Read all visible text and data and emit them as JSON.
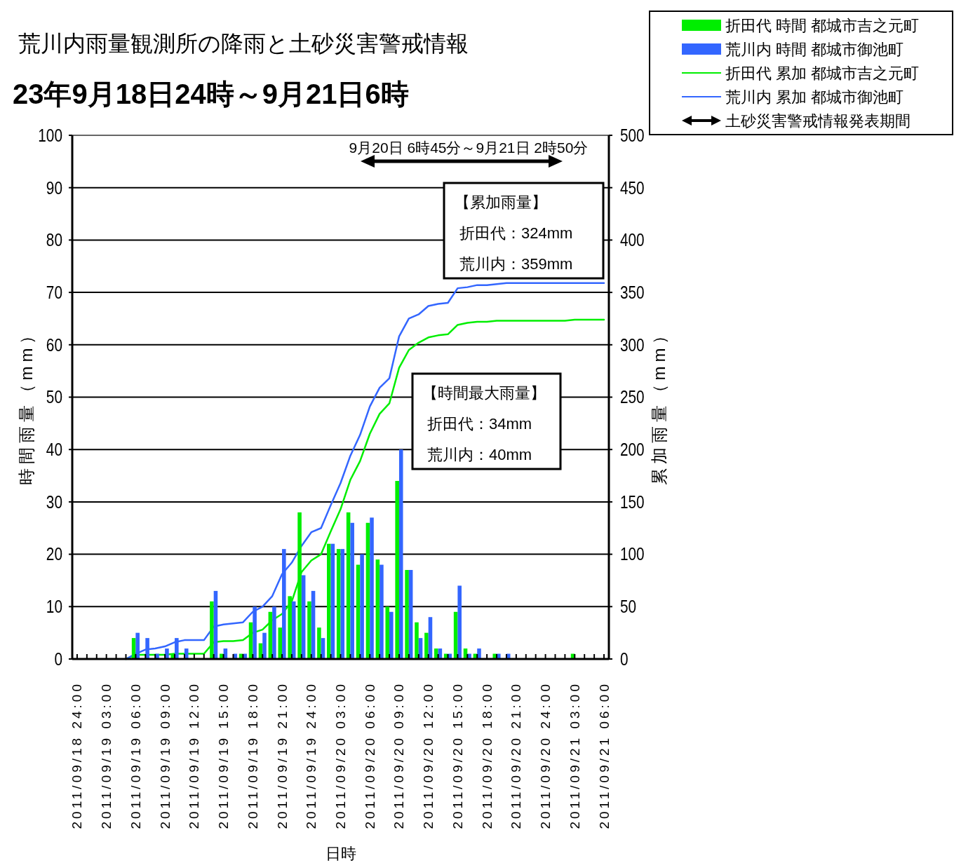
{
  "chart_data": {
    "type": "bar",
    "title": "荒川内雨量観測所の降雨と土砂災害警戒情報",
    "subtitle": "23年9月18日24時～9月21日6時",
    "xlabel": "日時",
    "ylabel": "時間雨量（mm）",
    "y2label": "累加雨量（mm）",
    "categories": [
      "2011/09/18 24:00",
      null,
      null,
      "2011/09/19 03:00",
      null,
      null,
      "2011/09/19 06:00",
      null,
      null,
      "2011/09/19 09:00",
      null,
      null,
      "2011/09/19 12:00",
      null,
      null,
      "2011/09/19 15:00",
      null,
      null,
      "2011/09/19 18:00",
      null,
      null,
      "2011/09/19 21:00",
      null,
      null,
      "2011/09/19 24:00",
      null,
      null,
      "2011/09/20 03:00",
      null,
      null,
      "2011/09/20 06:00",
      null,
      null,
      "2011/09/20 09:00",
      null,
      null,
      "2011/09/20 12:00",
      null,
      null,
      "2011/09/20 15:00",
      null,
      null,
      "2011/09/20 18:00",
      null,
      null,
      "2011/09/20 21:00",
      null,
      null,
      "2011/09/20 24:00",
      null,
      null,
      "2011/09/21 03:00",
      null,
      null,
      "2011/09/21 06:00"
    ],
    "series": [
      {
        "name": "折田代 時間 都城市吉之元町",
        "color": "#00ee00",
        "values": [
          0,
          0,
          0,
          0,
          0,
          0,
          4,
          0,
          0,
          0,
          1,
          0,
          0,
          0,
          11,
          1,
          0,
          1,
          7,
          3,
          9,
          6,
          12,
          28,
          11,
          6,
          22,
          21,
          28,
          18,
          26,
          19,
          10,
          34,
          17,
          7,
          5,
          2,
          1,
          9,
          2,
          1,
          0,
          1,
          0,
          0,
          0,
          0,
          0,
          0,
          0,
          1,
          0,
          0,
          0
        ]
      },
      {
        "name": "荒川内 時間 都城市御池町",
        "color": "#3366ff",
        "values": [
          0,
          0,
          0,
          0,
          0,
          0,
          5,
          4,
          1,
          2,
          4,
          2,
          0,
          0,
          13,
          2,
          1,
          1,
          10,
          5,
          10,
          21,
          11,
          16,
          13,
          4,
          22,
          21,
          26,
          20,
          27,
          18,
          9,
          40,
          17,
          4,
          8,
          2,
          1,
          14,
          1,
          2,
          0,
          1,
          1,
          0,
          0,
          0,
          0,
          0,
          0,
          0,
          0,
          0,
          0
        ]
      },
      {
        "name": "折田代 累加 都城市吉之元町",
        "type": "line",
        "axis": "y2",
        "color": "#00ee00",
        "values": [
          null,
          null,
          null,
          null,
          null,
          0,
          4,
          4,
          4,
          4,
          5,
          5,
          5,
          5,
          16,
          17,
          17,
          18,
          25,
          28,
          37,
          43,
          55,
          83,
          94,
          100,
          122,
          143,
          171,
          189,
          215,
          234,
          244,
          278,
          295,
          302,
          307,
          309,
          310,
          319,
          321,
          322,
          322,
          323,
          323,
          323,
          323,
          323,
          323,
          323,
          323,
          324,
          324,
          324,
          324
        ]
      },
      {
        "name": "荒川内 累加 都城市御池町",
        "type": "line",
        "axis": "y2",
        "color": "#3366ff",
        "values": [
          null,
          null,
          null,
          null,
          null,
          0,
          5,
          9,
          10,
          12,
          16,
          18,
          18,
          18,
          31,
          33,
          34,
          35,
          45,
          50,
          60,
          81,
          92,
          108,
          121,
          125,
          147,
          168,
          194,
          214,
          241,
          259,
          268,
          308,
          325,
          329,
          337,
          339,
          340,
          354,
          355,
          357,
          357,
          358,
          359,
          359,
          359,
          359,
          359,
          359,
          359,
          359,
          359,
          359,
          359
        ]
      }
    ],
    "ylim": [
      0,
      100
    ],
    "yticks": [
      0,
      10,
      20,
      30,
      40,
      50,
      60,
      70,
      80,
      90,
      100
    ],
    "y2lim": [
      0,
      500
    ],
    "y2ticks": [
      0,
      50,
      100,
      150,
      200,
      250,
      300,
      350,
      400,
      450,
      500
    ],
    "grid": "y",
    "legend": "top right",
    "annotations": [
      "9月20日 6時45分～9月21日 2時50分",
      "土砂災害警戒情報発表期間",
      "【累加雨量】",
      "折田代：324mm",
      "荒川内：359mm",
      "【時間最大雨量】",
      "折田代：34mm",
      "荒川内：40mm"
    ]
  }
}
